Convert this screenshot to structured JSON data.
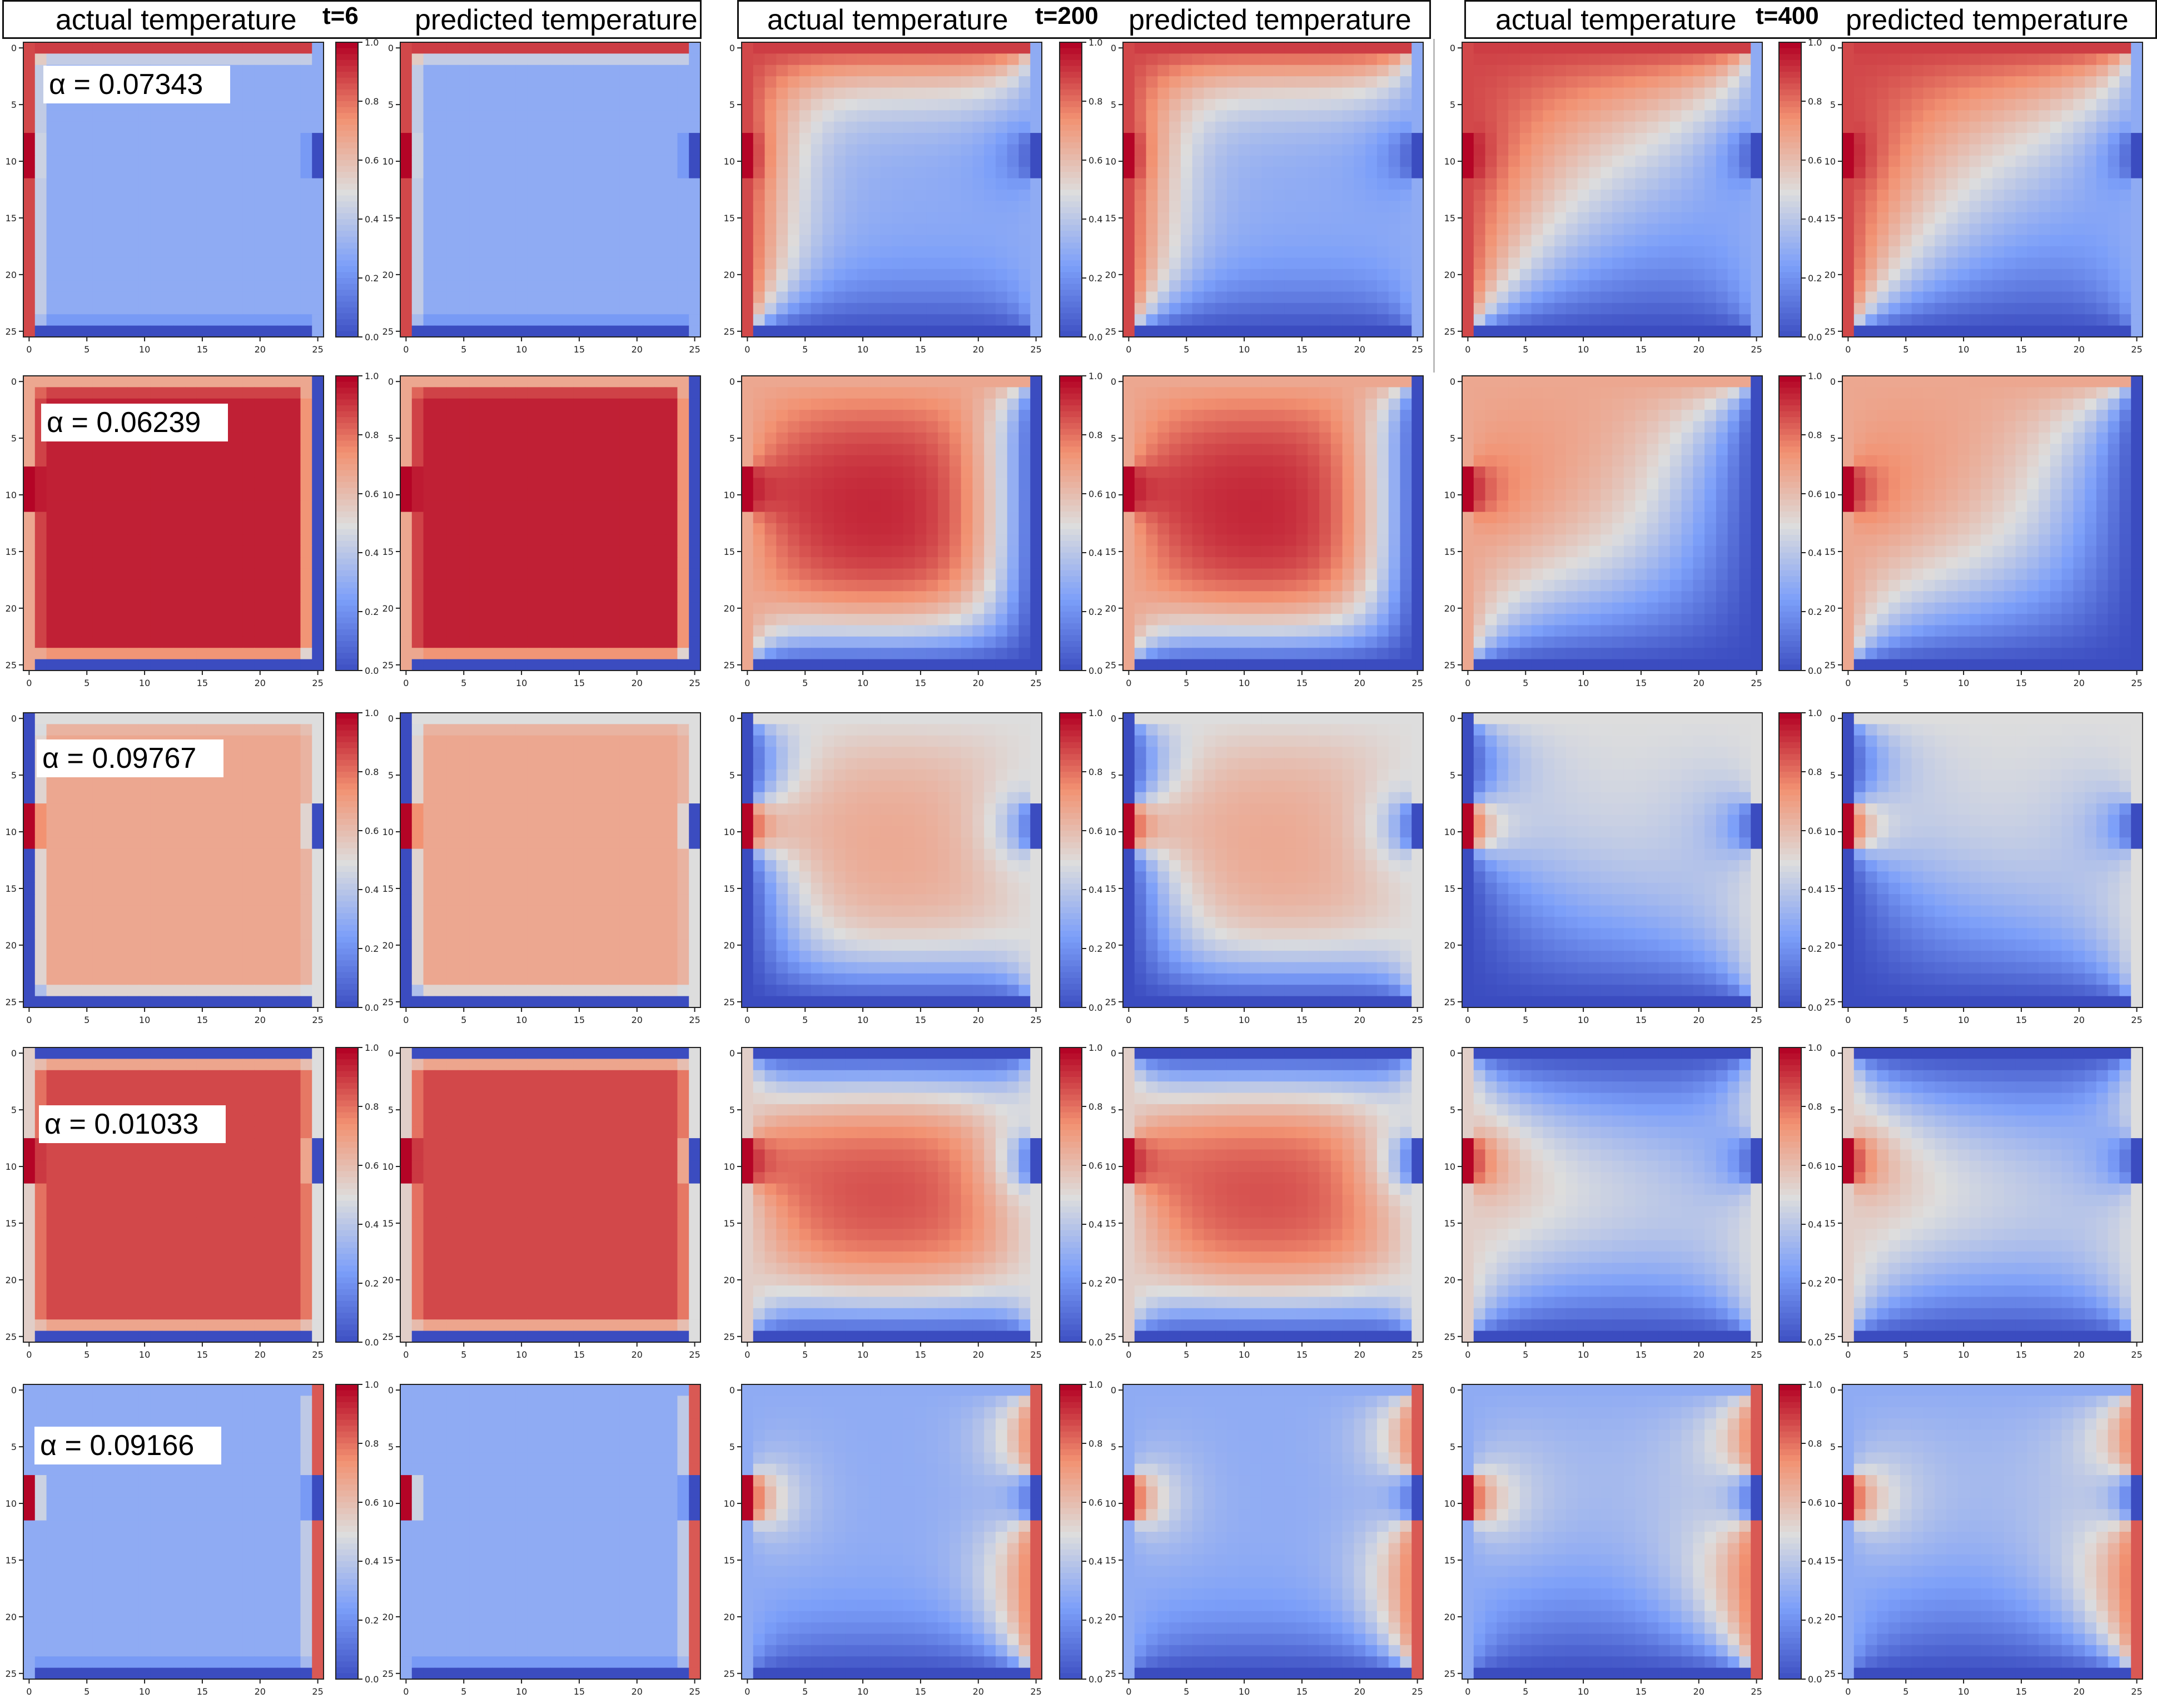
{
  "header": {
    "actual_label": "actual temperature",
    "predicted_label": "predicted temperature",
    "times": [
      "t=6",
      "t=200",
      "t=400"
    ]
  },
  "rows": [
    {
      "alpha_label": "α = 0.07343"
    },
    {
      "alpha_label": "α = 0.06239"
    },
    {
      "alpha_label": "α = 0.09767"
    },
    {
      "alpha_label": "α = 0.01033"
    },
    {
      "alpha_label": "α = 0.09166"
    }
  ],
  "colors": {
    "colormap": "coolwarm",
    "cold": "#3b4cc0",
    "neutral": "#dddddd",
    "hot": "#b40426"
  },
  "chart_data": {
    "type": "heatmap",
    "grid_size": 26,
    "x_ticks": [
      0,
      5,
      10,
      15,
      20,
      25
    ],
    "y_ticks": [
      0,
      5,
      10,
      15,
      20,
      25
    ],
    "colorbar_ticks": [
      0.0,
      0.2,
      0.4,
      0.6,
      0.8,
      1.0
    ],
    "colorbar_range": [
      0.0,
      1.0
    ],
    "colormap": "coolwarm",
    "columns": [
      "actual temperature",
      "predicted temperature"
    ],
    "timesteps": [
      "t=6",
      "t=200",
      "t=400"
    ],
    "alphas": [
      0.07343,
      0.06239,
      0.09767,
      0.01033,
      0.09166
    ],
    "initial_interior_temperature": [
      0.3,
      0.95,
      0.68,
      0.88,
      0.3
    ],
    "heater_cell": {
      "col": 0,
      "rows": [
        8,
        11
      ],
      "value": 1.0
    },
    "cooler_cell": {
      "col": 25,
      "rows": [
        8,
        11
      ],
      "value": 0.0
    },
    "boundary_profiles": [
      {
        "top": 0.9,
        "bottom": 0.0,
        "left": 0.88,
        "right": 0.3
      },
      {
        "top": 0.68,
        "bottom": 0.0,
        "left": 0.68,
        "right": 0.0
      },
      {
        "top": 0.5,
        "bottom": 0.0,
        "left": 0.0,
        "right": 0.5
      },
      {
        "top": 0.0,
        "bottom": 0.0,
        "left": 0.55,
        "right": 0.5
      },
      {
        "top": 0.3,
        "bottom": 0.0,
        "left": 0.3,
        "right": 0.85
      }
    ]
  }
}
